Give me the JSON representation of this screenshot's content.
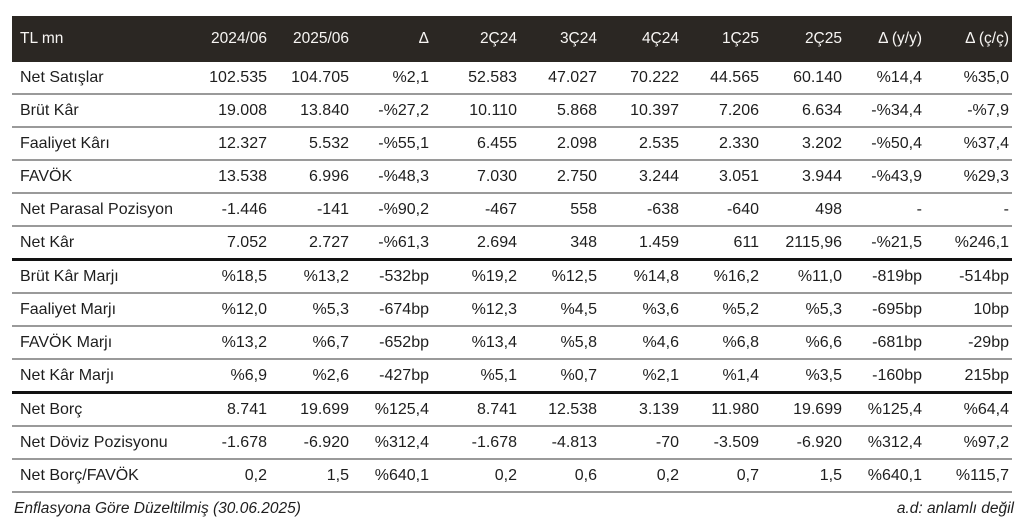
{
  "colors": {
    "header_bg": "#2b2723",
    "header_text": "#f7f5f3",
    "row_separator": "#9a9a9a",
    "section_separator": "#121212",
    "body_text": "#1e1e1e"
  },
  "footer": {
    "left": "Enflasyona Göre Düzeltilmiş (30.06.2025)",
    "right": "a.d: anlamlı değil"
  },
  "chart_data": {
    "type": "table",
    "title": "",
    "unit_label": "TL mn",
    "columns": [
      "TL mn",
      "2024/06",
      "2025/06",
      "Δ",
      "2Ç24",
      "3Ç24",
      "4Ç24",
      "1Ç25",
      "2Ç25",
      "Δ (y/y)",
      "Δ (ç/ç)"
    ],
    "rows": [
      {
        "label": "Net Satışlar",
        "values": [
          "102.535",
          "104.705",
          "%2,1",
          "52.583",
          "47.027",
          "70.222",
          "44.565",
          "60.140",
          "%14,4",
          "%35,0"
        ],
        "section_end": false
      },
      {
        "label": "Brüt Kâr",
        "values": [
          "19.008",
          "13.840",
          "-%27,2",
          "10.110",
          "5.868",
          "10.397",
          "7.206",
          "6.634",
          "-%34,4",
          "-%7,9"
        ],
        "section_end": false
      },
      {
        "label": "Faaliyet Kârı",
        "values": [
          "12.327",
          "5.532",
          "-%55,1",
          "6.455",
          "2.098",
          "2.535",
          "2.330",
          "3.202",
          "-%50,4",
          "%37,4"
        ],
        "section_end": false
      },
      {
        "label": "FAVÖK",
        "values": [
          "13.538",
          "6.996",
          "-%48,3",
          "7.030",
          "2.750",
          "3.244",
          "3.051",
          "3.944",
          "-%43,9",
          "%29,3"
        ],
        "section_end": false
      },
      {
        "label": "Net Parasal Pozisyon",
        "values": [
          "-1.446",
          "-141",
          "-%90,2",
          "-467",
          "558",
          "-638",
          "-640",
          "498",
          "-",
          "-"
        ],
        "section_end": false
      },
      {
        "label": "Net Kâr",
        "values": [
          "7.052",
          "2.727",
          "-%61,3",
          "2.694",
          "348",
          "1.459",
          "611",
          "2115,96",
          "-%21,5",
          "%246,1"
        ],
        "section_end": true
      },
      {
        "label": "Brüt Kâr Marjı",
        "values": [
          "%18,5",
          "%13,2",
          "-532bp",
          "%19,2",
          "%12,5",
          "%14,8",
          "%16,2",
          "%11,0",
          "-819bp",
          "-514bp"
        ],
        "section_end": false
      },
      {
        "label": "Faaliyet Marjı",
        "values": [
          "%12,0",
          "%5,3",
          "-674bp",
          "%12,3",
          "%4,5",
          "%3,6",
          "%5,2",
          "%5,3",
          "-695bp",
          "10bp"
        ],
        "section_end": false
      },
      {
        "label": "FAVÖK Marjı",
        "values": [
          "%13,2",
          "%6,7",
          "-652bp",
          "%13,4",
          "%5,8",
          "%4,6",
          "%6,8",
          "%6,6",
          "-681bp",
          "-29bp"
        ],
        "section_end": false
      },
      {
        "label": "Net Kâr Marjı",
        "values": [
          "%6,9",
          "%2,6",
          "-427bp",
          "%5,1",
          "%0,7",
          "%2,1",
          "%1,4",
          "%3,5",
          "-160bp",
          "215bp"
        ],
        "section_end": true
      },
      {
        "label": "Net Borç",
        "values": [
          "8.741",
          "19.699",
          "%125,4",
          "8.741",
          "12.538",
          "3.139",
          "11.980",
          "19.699",
          "%125,4",
          "%64,4"
        ],
        "section_end": false
      },
      {
        "label": "Net Döviz Pozisyonu",
        "values": [
          "-1.678",
          "-6.920",
          "%312,4",
          "-1.678",
          "-4.813",
          "-70",
          "-3.509",
          "-6.920",
          "%312,4",
          "%97,2"
        ],
        "section_end": false
      },
      {
        "label": "Net Borç/FAVÖK",
        "values": [
          "0,2",
          "1,5",
          "%640,1",
          "0,2",
          "0,6",
          "0,2",
          "0,7",
          "1,5",
          "%640,1",
          "%115,7"
        ],
        "section_end": false
      }
    ],
    "footnotes": [
      "Enflasyona Göre Düzeltilmiş (30.06.2025)",
      "a.d: anlamlı değil"
    ]
  }
}
